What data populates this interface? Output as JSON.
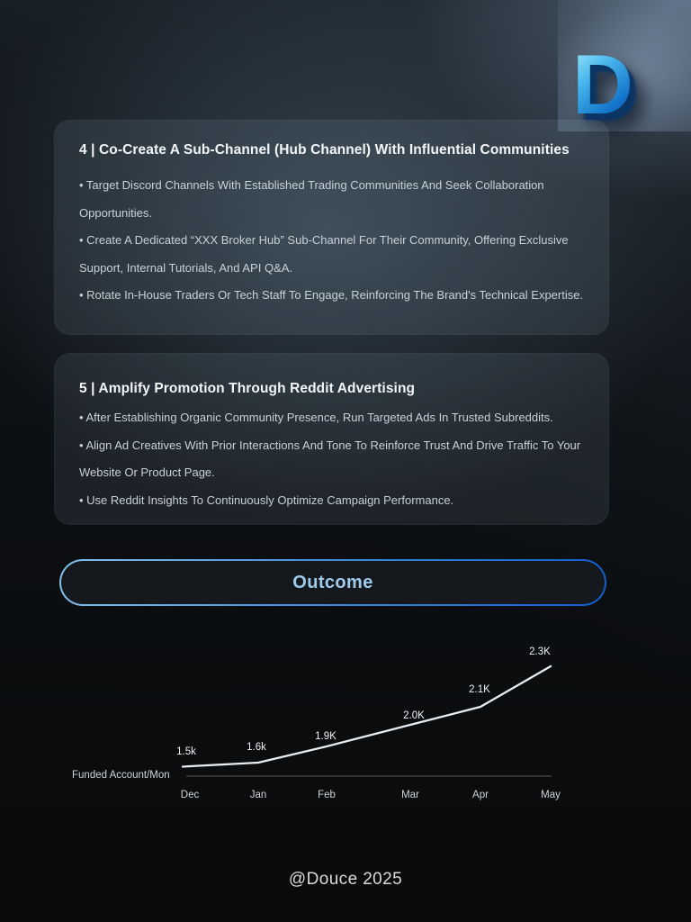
{
  "logo": {
    "letter": "D"
  },
  "cards": [
    {
      "title": "4 | Co-Create A Sub-Channel (Hub Channel) With Influential Communities",
      "bullets": [
        "• Target Discord Channels With Established Trading Communities And Seek Collaboration Opportunities.",
        "• Create A Dedicated “XXX Broker Hub” Sub-Channel For Their Community, Offering Exclusive Support, Internal Tutorials, And API Q&A.",
        "• Rotate In-House Traders Or Tech Staff To Engage, Reinforcing The Brand's Technical Expertise."
      ]
    },
    {
      "title": "5 | Amplify Promotion Through Reddit Advertising",
      "bullets": [
        "• After Establishing Organic Community Presence, Run Targeted Ads In Trusted Subreddits.",
        "• Align Ad Creatives With Prior Interactions And Tone To Reinforce Trust And Drive Traffic To Your Website Or Product Page.",
        "• Use Reddit Insights To Continuously Optimize Campaign Performance."
      ]
    }
  ],
  "outcome_button": {
    "label": "Outcome"
  },
  "chart_data": {
    "type": "line",
    "title": "",
    "axis_label": "Funded Account/Mon",
    "x": [
      "Dec",
      "Jan",
      "Feb",
      "Mar",
      "Apr",
      "May"
    ],
    "values": [
      1500,
      1600,
      1900,
      2000,
      2100,
      2300
    ],
    "value_labels": [
      "1.5k",
      "1.6k",
      "1.9K",
      "2.0K",
      "2.1K",
      "2.3K"
    ],
    "xlabel": "",
    "ylabel": "Funded Account/Mon",
    "legend": false,
    "grid": false,
    "line_color": "#e6edf3",
    "label_color": "#eef2f6",
    "tick_color": "#cfd4d9"
  },
  "footer": {
    "credit": "@Douce 2025"
  },
  "colors": {
    "background_dark": "#0b0d0f",
    "background_glow": "#5e7a8c",
    "card_tint": "#b2ccdf",
    "accent_blue_light": "#84c0ea",
    "accent_blue_deep": "#155ccc",
    "outcome_text": "#9ecbee",
    "logo_cyan": "#a4ecfb",
    "logo_blue": "#0b509f",
    "title_text": "#f4f7fa",
    "body_text": "#c7d1d8",
    "footer_text": "#d7d9da"
  }
}
